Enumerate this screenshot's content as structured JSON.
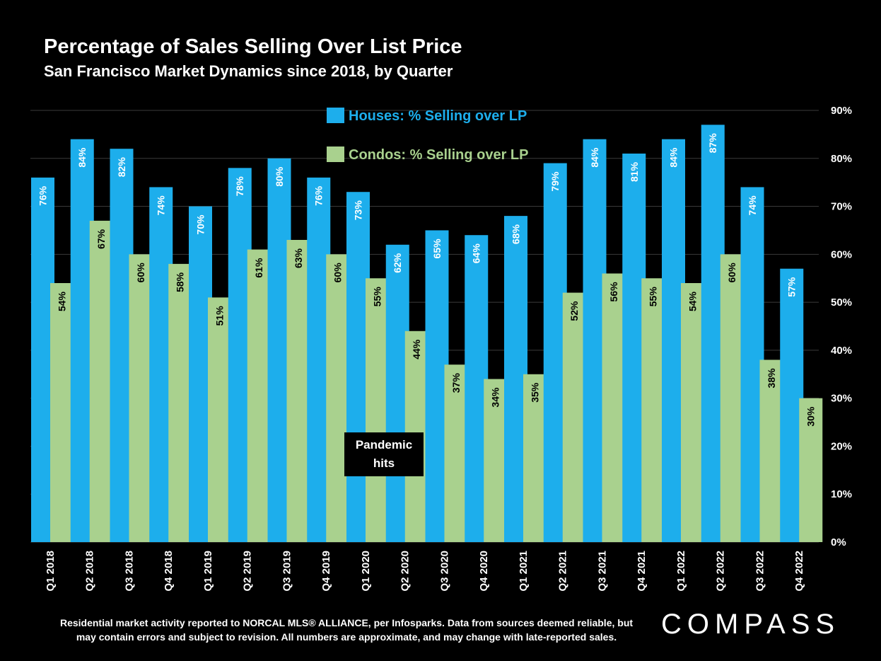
{
  "title": "Percentage of Sales Selling Over List Price",
  "subtitle": "San Francisco Market Dynamics since 2018, by Quarter",
  "annotation": "Pandemic hits",
  "footer_line1": "Residential market activity reported to NORCAL MLS® ALLIANCE, per Infosparks. Data from sources deemed reliable, but",
  "footer_line2": "may contain errors and subject to revision. All numbers are approximate, and may change with late-reported sales.",
  "logo": "COMPASS",
  "colors": {
    "houses": "#1daeec",
    "condos": "#a9d18e",
    "background": "#000000",
    "grid": "#3a3a3a"
  },
  "chart_data": {
    "type": "bar",
    "categories": [
      "Q1 2018",
      "Q2 2018",
      "Q3 2018",
      "Q4 2018",
      "Q1 2019",
      "Q2 2019",
      "Q3 2019",
      "Q4 2019",
      "Q1 2020",
      "Q2 2020",
      "Q3 2020",
      "Q4 2020",
      "Q1 2021",
      "Q2 2021",
      "Q3 2021",
      "Q4 2021",
      "Q1 2022",
      "Q2 2022",
      "Q3 2022",
      "Q4 2022"
    ],
    "series": [
      {
        "name": "Houses: % Selling over LP",
        "values": [
          76,
          84,
          82,
          74,
          70,
          78,
          80,
          76,
          73,
          62,
          65,
          64,
          68,
          79,
          84,
          81,
          84,
          87,
          74,
          57
        ]
      },
      {
        "name": "Condos: % Selling over LP",
        "values": [
          54,
          67,
          60,
          58,
          51,
          61,
          63,
          60,
          55,
          44,
          37,
          34,
          35,
          52,
          56,
          55,
          54,
          60,
          38,
          30
        ]
      }
    ],
    "ylim": [
      0,
      90
    ],
    "yticks": [
      "0%",
      "10%",
      "20%",
      "30%",
      "40%",
      "50%",
      "60%",
      "70%",
      "80%",
      "90%"
    ],
    "y_axis_side": "right",
    "legend_position": "top-center",
    "grid": true
  }
}
